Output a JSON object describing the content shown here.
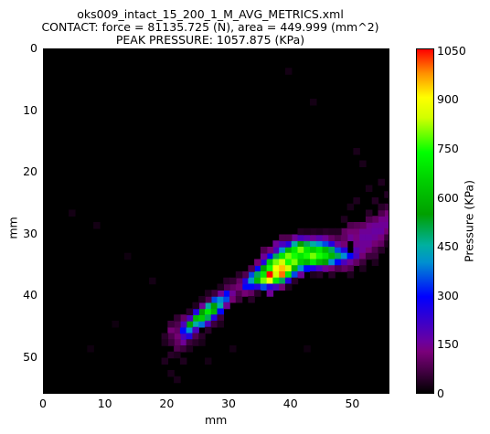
{
  "chart_data": {
    "type": "heatmap",
    "title_lines": [
      "oks009_intact_15_200_1_M_AVG_METRICS.xml",
      "CONTACT: force = 81135.725 (N), area = 449.999 (mm^2)",
      "PEAK PRESSURE: 1057.875 (KPa)"
    ],
    "xlabel": "mm",
    "ylabel": "mm",
    "colorbar_label": "Pressure (KPa)",
    "xlim": [
      0,
      56
    ],
    "ylim": [
      56,
      0
    ],
    "x_ticks": [
      0,
      10,
      20,
      30,
      40,
      50
    ],
    "y_ticks": [
      0,
      10,
      20,
      30,
      40,
      50
    ],
    "colorbar_range": [
      0,
      1057.875
    ],
    "colorbar_ticks": [
      0,
      150,
      300,
      450,
      600,
      750,
      900,
      1050
    ],
    "grid": false,
    "cells": [
      [
        22,
        47,
        150
      ],
      [
        22,
        46,
        200
      ],
      [
        21,
        46,
        120
      ],
      [
        21,
        45,
        100
      ],
      [
        20,
        45,
        120
      ],
      [
        20,
        46,
        80
      ],
      [
        21,
        47,
        100
      ],
      [
        22,
        45,
        300
      ],
      [
        23,
        45,
        400
      ],
      [
        23,
        46,
        250
      ],
      [
        24,
        44,
        450
      ],
      [
        24,
        43,
        600
      ],
      [
        23,
        44,
        550
      ],
      [
        22,
        44,
        200
      ],
      [
        21,
        44,
        80
      ],
      [
        24,
        45,
        200
      ],
      [
        25,
        44,
        380
      ],
      [
        25,
        43,
        650
      ],
      [
        25,
        42,
        550
      ],
      [
        26,
        42,
        700
      ],
      [
        26,
        43,
        500
      ],
      [
        26,
        41,
        450
      ],
      [
        27,
        42,
        600
      ],
      [
        27,
        41,
        550
      ],
      [
        27,
        40,
        350
      ],
      [
        28,
        41,
        450
      ],
      [
        28,
        40,
        400
      ],
      [
        28,
        42,
        300
      ],
      [
        29,
        40,
        350
      ],
      [
        29,
        39,
        300
      ],
      [
        29,
        41,
        150
      ],
      [
        26,
        44,
        200
      ],
      [
        27,
        43,
        250
      ],
      [
        25,
        41,
        150
      ],
      [
        24,
        42,
        250
      ],
      [
        23,
        43,
        200
      ],
      [
        22,
        43,
        100
      ],
      [
        28,
        39,
        150
      ],
      [
        30,
        39,
        150
      ],
      [
        30,
        40,
        120
      ],
      [
        30,
        38,
        100
      ],
      [
        31,
        39,
        80
      ],
      [
        31,
        40,
        60
      ],
      [
        29,
        38,
        80
      ],
      [
        27,
        39,
        60
      ],
      [
        26,
        40,
        80
      ],
      [
        23,
        47,
        60
      ],
      [
        24,
        46,
        80
      ],
      [
        32,
        38,
        300
      ],
      [
        32,
        37,
        250
      ],
      [
        33,
        36,
        350
      ],
      [
        33,
        37,
        420
      ],
      [
        33,
        38,
        300
      ],
      [
        34,
        35,
        300
      ],
      [
        34,
        36,
        500
      ],
      [
        34,
        37,
        600
      ],
      [
        34,
        38,
        250
      ],
      [
        35,
        34,
        250
      ],
      [
        35,
        35,
        550
      ],
      [
        35,
        36,
        700
      ],
      [
        35,
        37,
        800
      ],
      [
        35,
        38,
        350
      ],
      [
        36,
        33,
        300
      ],
      [
        36,
        34,
        650
      ],
      [
        36,
        35,
        750
      ],
      [
        36,
        36,
        1057
      ],
      [
        36,
        37,
        900
      ],
      [
        36,
        38,
        250
      ],
      [
        37,
        33,
        500
      ],
      [
        37,
        34,
        800
      ],
      [
        37,
        35,
        900
      ],
      [
        37,
        36,
        850
      ],
      [
        37,
        37,
        700
      ],
      [
        37,
        32,
        200
      ],
      [
        38,
        32,
        400
      ],
      [
        38,
        33,
        700
      ],
      [
        38,
        34,
        850
      ],
      [
        38,
        35,
        950
      ],
      [
        38,
        36,
        1000
      ],
      [
        38,
        37,
        500
      ],
      [
        39,
        32,
        600
      ],
      [
        39,
        33,
        800
      ],
      [
        39,
        34,
        750
      ],
      [
        39,
        35,
        850
      ],
      [
        39,
        36,
        700
      ],
      [
        39,
        37,
        250
      ],
      [
        39,
        31,
        250
      ],
      [
        40,
        31,
        450
      ],
      [
        40,
        32,
        700
      ],
      [
        40,
        33,
        750
      ],
      [
        40,
        34,
        800
      ],
      [
        40,
        35,
        600
      ],
      [
        40,
        36,
        350
      ],
      [
        41,
        31,
        550
      ],
      [
        41,
        32,
        800
      ],
      [
        41,
        33,
        700
      ],
      [
        41,
        34,
        650
      ],
      [
        41,
        35,
        400
      ],
      [
        41,
        36,
        150
      ],
      [
        42,
        31,
        500
      ],
      [
        42,
        32,
        700
      ],
      [
        42,
        33,
        750
      ],
      [
        42,
        34,
        600
      ],
      [
        42,
        35,
        300
      ],
      [
        43,
        31,
        450
      ],
      [
        43,
        32,
        650
      ],
      [
        43,
        33,
        800
      ],
      [
        43,
        34,
        700
      ],
      [
        43,
        35,
        250
      ],
      [
        44,
        31,
        400
      ],
      [
        44,
        32,
        700
      ],
      [
        44,
        33,
        750
      ],
      [
        44,
        34,
        600
      ],
      [
        44,
        35,
        200
      ],
      [
        45,
        31,
        350
      ],
      [
        45,
        32,
        600
      ],
      [
        45,
        33,
        700
      ],
      [
        45,
        34,
        550
      ],
      [
        45,
        35,
        150
      ],
      [
        46,
        31,
        250
      ],
      [
        46,
        32,
        500
      ],
      [
        46,
        33,
        600
      ],
      [
        46,
        34,
        400
      ],
      [
        46,
        35,
        120
      ],
      [
        47,
        32,
        350
      ],
      [
        47,
        33,
        500
      ],
      [
        47,
        34,
        300
      ],
      [
        48,
        32,
        250
      ],
      [
        48,
        33,
        400
      ],
      [
        48,
        34,
        200
      ],
      [
        49,
        33,
        300
      ],
      [
        49,
        34,
        150
      ],
      [
        50,
        33,
        200
      ],
      [
        37,
        31,
        150
      ],
      [
        38,
        31,
        200
      ],
      [
        35,
        33,
        150
      ],
      [
        34,
        34,
        120
      ],
      [
        36,
        39,
        150
      ],
      [
        37,
        38,
        200
      ],
      [
        38,
        38,
        120
      ],
      [
        32,
        39,
        120
      ],
      [
        33,
        39,
        100
      ],
      [
        40,
        30,
        150
      ],
      [
        41,
        30,
        200
      ],
      [
        42,
        30,
        180
      ],
      [
        43,
        30,
        150
      ],
      [
        44,
        30,
        180
      ],
      [
        45,
        30,
        150
      ],
      [
        47,
        31,
        150
      ],
      [
        48,
        31,
        120
      ],
      [
        46,
        30,
        100
      ],
      [
        39,
        30,
        80
      ],
      [
        50,
        32,
        180
      ],
      [
        51,
        32,
        150
      ],
      [
        51,
        33,
        120
      ],
      [
        50,
        34,
        100
      ],
      [
        52,
        32,
        120
      ],
      [
        49,
        35,
        80
      ],
      [
        48,
        35,
        100
      ],
      [
        47,
        35,
        80
      ],
      [
        38,
        30,
        80
      ],
      [
        36,
        32,
        120
      ],
      [
        35,
        32,
        80
      ],
      [
        31,
        37,
        100
      ],
      [
        31,
        38,
        120
      ],
      [
        32,
        36,
        80
      ],
      [
        33,
        35,
        80
      ],
      [
        48,
        29,
        100
      ],
      [
        49,
        29,
        120
      ],
      [
        49,
        30,
        150
      ],
      [
        50,
        29,
        120
      ],
      [
        50,
        30,
        130
      ],
      [
        50,
        31,
        140
      ],
      [
        51,
        29,
        150
      ],
      [
        51,
        30,
        160
      ],
      [
        51,
        31,
        150
      ],
      [
        52,
        28,
        140
      ],
      [
        52,
        29,
        150
      ],
      [
        52,
        30,
        160
      ],
      [
        52,
        31,
        150
      ],
      [
        53,
        28,
        150
      ],
      [
        53,
        29,
        160
      ],
      [
        53,
        30,
        150
      ],
      [
        53,
        31,
        120
      ],
      [
        54,
        27,
        140
      ],
      [
        54,
        28,
        150
      ],
      [
        54,
        29,
        160
      ],
      [
        54,
        30,
        130
      ],
      [
        55,
        26,
        120
      ],
      [
        55,
        27,
        140
      ],
      [
        55,
        28,
        150
      ],
      [
        55,
        29,
        120
      ],
      [
        53,
        27,
        100
      ],
      [
        52,
        27,
        80
      ],
      [
        51,
        28,
        100
      ],
      [
        50,
        28,
        90
      ],
      [
        49,
        28,
        80
      ],
      [
        54,
        31,
        100
      ],
      [
        53,
        32,
        80
      ],
      [
        54,
        26,
        80
      ],
      [
        55,
        25,
        60
      ],
      [
        51,
        34,
        60
      ],
      [
        52,
        33,
        60
      ],
      [
        53,
        33,
        60
      ],
      [
        47,
        30,
        80
      ],
      [
        48,
        30,
        100
      ],
      [
        21,
        48,
        80
      ],
      [
        20,
        47,
        60
      ],
      [
        22,
        48,
        60
      ],
      [
        20,
        44,
        60
      ],
      [
        21,
        43,
        50
      ],
      [
        24,
        47,
        40
      ],
      [
        25,
        46,
        40
      ],
      [
        27,
        44,
        60
      ],
      [
        28,
        43,
        60
      ],
      [
        19,
        50,
        30
      ],
      [
        20,
        52,
        25
      ],
      [
        21,
        53,
        25
      ],
      [
        22,
        50,
        30
      ],
      [
        29,
        37,
        40
      ],
      [
        30,
        37,
        50
      ],
      [
        33,
        40,
        40
      ],
      [
        40,
        37,
        40
      ],
      [
        44,
        36,
        40
      ],
      [
        50,
        24,
        30
      ],
      [
        53,
        24,
        35
      ],
      [
        54,
        25,
        40
      ],
      [
        52,
        26,
        40
      ],
      [
        55,
        30,
        60
      ],
      [
        55,
        31,
        30
      ],
      [
        51,
        35,
        30
      ],
      [
        49,
        36,
        30
      ],
      [
        46,
        36,
        40
      ],
      [
        43,
        36,
        30
      ],
      [
        39,
        38,
        30
      ],
      [
        34,
        39,
        40
      ],
      [
        31,
        36,
        40
      ],
      [
        45,
        29,
        40
      ],
      [
        43,
        29,
        35
      ],
      [
        41,
        29,
        35
      ],
      [
        52,
        22,
        25
      ],
      [
        49,
        25,
        25
      ],
      [
        48,
        27,
        30
      ],
      [
        53,
        34,
        30
      ],
      [
        54,
        32,
        40
      ],
      [
        28,
        38,
        30
      ],
      [
        26,
        39,
        30
      ],
      [
        25,
        40,
        30
      ],
      [
        24,
        41,
        30
      ],
      [
        23,
        42,
        40
      ],
      [
        19,
        46,
        40
      ],
      [
        19,
        47,
        30
      ],
      [
        20,
        49,
        40
      ],
      [
        21,
        49,
        30
      ],
      [
        23,
        48,
        30
      ],
      [
        25,
        47,
        25
      ],
      [
        26,
        45,
        40
      ],
      [
        28,
        44,
        30
      ],
      [
        42,
        29,
        30
      ],
      [
        44,
        29,
        30
      ],
      [
        46,
        29,
        35
      ],
      [
        47,
        29,
        35
      ],
      [
        56,
        28,
        50
      ],
      [
        39,
        3,
        20
      ],
      [
        43,
        8,
        20
      ],
      [
        50,
        16,
        25
      ],
      [
        51,
        18,
        25
      ],
      [
        54,
        21,
        30
      ],
      [
        55,
        23,
        35
      ],
      [
        4,
        26,
        20
      ],
      [
        8,
        28,
        20
      ],
      [
        13,
        33,
        15
      ],
      [
        17,
        37,
        20
      ],
      [
        11,
        44,
        15
      ],
      [
        7,
        48,
        15
      ],
      [
        30,
        48,
        20
      ],
      [
        26,
        50,
        20
      ],
      [
        42,
        48,
        15
      ]
    ]
  }
}
